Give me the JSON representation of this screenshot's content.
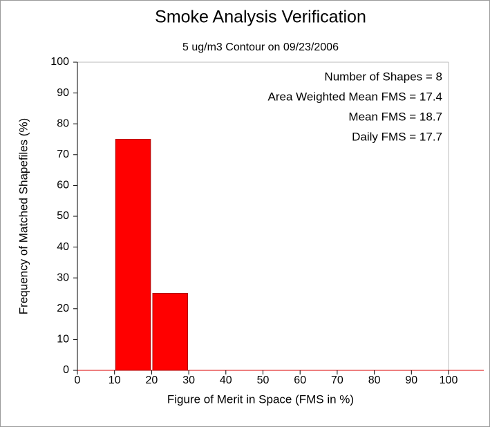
{
  "chart_data": {
    "type": "histogram",
    "title": "Smoke Analysis Verification",
    "subtitle": "5 ug/m3 Contour on 09/23/2006",
    "xlabel": "Figure of Merit in Space (FMS in %)",
    "ylabel": "Frequency of Matched Shapefiles (%)",
    "bins": [
      0,
      10,
      20,
      30,
      40,
      50,
      60,
      70,
      80,
      90,
      100
    ],
    "values": [
      0,
      75,
      25,
      0,
      0,
      0,
      0,
      0,
      0,
      0
    ],
    "color": "#ff0000",
    "xlim": [
      0,
      100
    ],
    "ylim": [
      0,
      100
    ],
    "xticks": [
      0,
      10,
      20,
      30,
      40,
      50,
      60,
      70,
      80,
      90,
      100
    ],
    "yticks": [
      0,
      10,
      20,
      30,
      40,
      50,
      60,
      70,
      80,
      90,
      100
    ],
    "annotations": [
      "Number of Shapes = 8",
      "Area Weighted Mean FMS = 17.4",
      "Mean FMS = 18.7",
      "Daily FMS = 17.7"
    ]
  }
}
